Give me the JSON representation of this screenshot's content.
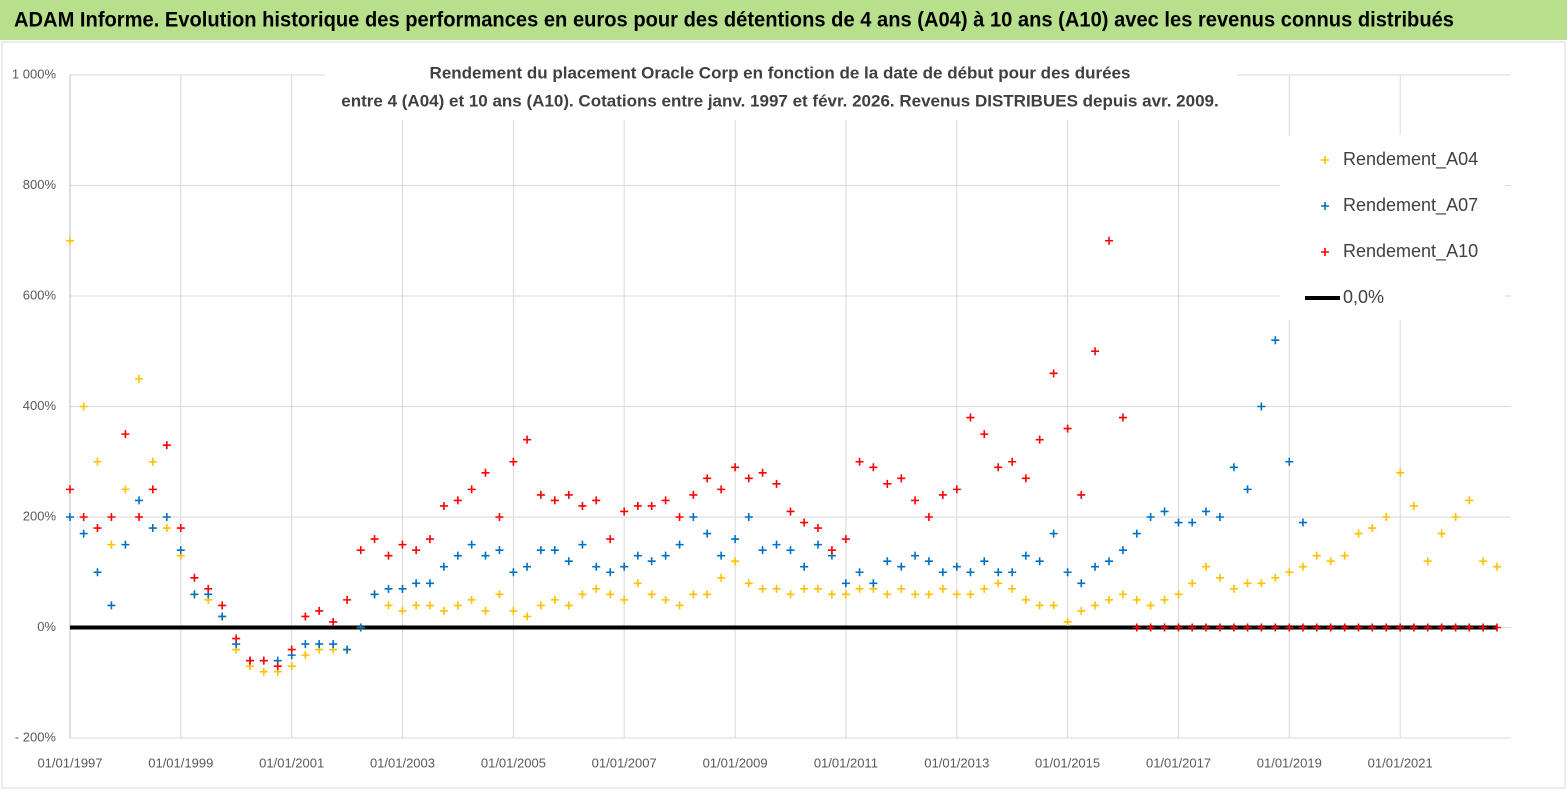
{
  "header": {
    "title": "ADAM Informe. Evolution historique des performances en euros pour des détentions de 4 ans (A04) à 10 ans (A10) avec les revenus connus distribués"
  },
  "chart_data": {
    "type": "scatter",
    "title": [
      "Rendement du placement Oracle Corp en fonction de la date de début pour des durées",
      "entre 4 (A04) et 10 ans (A10). Cotations entre janv. 1997 et févr. 2026. Revenus DISTRIBUES depuis avr. 2009."
    ],
    "x": [
      "1997-01-01",
      "1997-04-01",
      "1997-07-01",
      "1997-10-01",
      "1998-01-01",
      "1998-04-01",
      "1998-07-01",
      "1998-10-01",
      "1999-01-01",
      "1999-04-01",
      "1999-07-01",
      "1999-10-01",
      "2000-01-01",
      "2000-04-01",
      "2000-07-01",
      "2000-10-01",
      "2001-01-01",
      "2001-04-01",
      "2001-07-01",
      "2001-10-01",
      "2002-01-01",
      "2002-04-01",
      "2002-07-01",
      "2002-10-01",
      "2003-01-01",
      "2003-04-01",
      "2003-07-01",
      "2003-10-01",
      "2004-01-01",
      "2004-04-01",
      "2004-07-01",
      "2004-10-01",
      "2005-01-01",
      "2005-04-01",
      "2005-07-01",
      "2005-10-01",
      "2006-01-01",
      "2006-04-01",
      "2006-07-01",
      "2006-10-01",
      "2007-01-01",
      "2007-04-01",
      "2007-07-01",
      "2007-10-01",
      "2008-01-01",
      "2008-04-01",
      "2008-07-01",
      "2008-10-01",
      "2009-01-01",
      "2009-04-01",
      "2009-07-01",
      "2009-10-01",
      "2010-01-01",
      "2010-04-01",
      "2010-07-01",
      "2010-10-01",
      "2011-01-01",
      "2011-04-01",
      "2011-07-01",
      "2011-10-01",
      "2012-01-01",
      "2012-04-01",
      "2012-07-01",
      "2012-10-01",
      "2013-01-01",
      "2013-04-01",
      "2013-07-01",
      "2013-10-01",
      "2014-01-01",
      "2014-04-01",
      "2014-07-01",
      "2014-10-01",
      "2015-01-01",
      "2015-04-01",
      "2015-07-01",
      "2015-10-01",
      "2016-01-01",
      "2016-04-01",
      "2016-07-01",
      "2016-10-01",
      "2017-01-01",
      "2017-04-01",
      "2017-07-01",
      "2017-10-01",
      "2018-01-01",
      "2018-04-01",
      "2018-07-01",
      "2018-10-01",
      "2019-01-01",
      "2019-04-01",
      "2019-07-01",
      "2019-10-01",
      "2020-01-01",
      "2020-04-01",
      "2020-07-01",
      "2020-10-01",
      "2021-01-01",
      "2021-04-01",
      "2021-07-01",
      "2021-10-01",
      "2022-01-01",
      "2022-04-01",
      "2022-07-01",
      "2022-10-01"
    ],
    "series": [
      {
        "name": "Rendement_A04",
        "color": "#ffc000",
        "mode": "markers",
        "values": [
          700,
          400,
          300,
          150,
          250,
          450,
          300,
          180,
          130,
          60,
          50,
          20,
          -40,
          -70,
          -80,
          -80,
          -70,
          -50,
          -40,
          -40,
          -40,
          0,
          60,
          40,
          30,
          40,
          40,
          30,
          40,
          50,
          30,
          60,
          30,
          20,
          40,
          50,
          40,
          60,
          70,
          60,
          50,
          80,
          60,
          50,
          40,
          60,
          60,
          90,
          120,
          80,
          70,
          70,
          60,
          70,
          70,
          60,
          60,
          70,
          70,
          60,
          70,
          60,
          60,
          70,
          60,
          60,
          70,
          80,
          70,
          50,
          40,
          40,
          10,
          30,
          40,
          50,
          60,
          50,
          40,
          50,
          60,
          80,
          110,
          90,
          70,
          80,
          80,
          90,
          100,
          110,
          130,
          120,
          130,
          170,
          180,
          200,
          280,
          220,
          120,
          170,
          200,
          230,
          120,
          110
        ]
      },
      {
        "name": "Rendement_A07",
        "color": "#0070c0",
        "mode": "markers",
        "values": [
          200,
          170,
          100,
          40,
          150,
          230,
          180,
          200,
          140,
          60,
          60,
          20,
          -30,
          -60,
          -60,
          -60,
          -50,
          -30,
          -30,
          -30,
          -40,
          0,
          60,
          70,
          70,
          80,
          80,
          110,
          130,
          150,
          130,
          140,
          100,
          110,
          140,
          140,
          120,
          150,
          110,
          100,
          110,
          130,
          120,
          130,
          150,
          200,
          170,
          130,
          160,
          200,
          140,
          150,
          140,
          110,
          150,
          130,
          80,
          100,
          80,
          120,
          110,
          130,
          120,
          100,
          110,
          100,
          120,
          100,
          100,
          130,
          120,
          170,
          100,
          80,
          110,
          120,
          140,
          170,
          200,
          210,
          190,
          190,
          210,
          200,
          290,
          250,
          400,
          520,
          300,
          190,
          null,
          null,
          null,
          null,
          null,
          null,
          null,
          null,
          null,
          null,
          null,
          null,
          null,
          null
        ]
      },
      {
        "name": "Rendement_A10",
        "color": "#ff0000",
        "mode": "markers",
        "values": [
          250,
          200,
          180,
          200,
          350,
          200,
          250,
          330,
          180,
          90,
          70,
          40,
          -20,
          -60,
          -60,
          -70,
          -40,
          20,
          30,
          10,
          50,
          140,
          160,
          130,
          150,
          140,
          160,
          220,
          230,
          250,
          280,
          200,
          300,
          340,
          240,
          230,
          240,
          220,
          230,
          160,
          210,
          220,
          220,
          230,
          200,
          240,
          270,
          250,
          290,
          270,
          280,
          260,
          210,
          190,
          180,
          140,
          160,
          300,
          290,
          260,
          270,
          230,
          200,
          240,
          250,
          380,
          350,
          290,
          300,
          270,
          340,
          460,
          360,
          240,
          500,
          700,
          380,
          0,
          0,
          0,
          0,
          0,
          0,
          0,
          0,
          0,
          0,
          0,
          0,
          0,
          0,
          0,
          0,
          0,
          0,
          0,
          0,
          0,
          0,
          0,
          0,
          0,
          0,
          0
        ]
      },
      {
        "name": "0,0%",
        "color": "#000000",
        "mode": "line",
        "values": [
          0,
          0,
          0,
          0,
          0,
          0,
          0,
          0,
          0,
          0,
          0,
          0,
          0,
          0,
          0,
          0,
          0,
          0,
          0,
          0,
          0,
          0,
          0,
          0,
          0,
          0,
          0,
          0,
          0,
          0,
          0,
          0,
          0,
          0,
          0,
          0,
          0,
          0,
          0,
          0,
          0,
          0,
          0,
          0,
          0,
          0,
          0,
          0,
          0,
          0,
          0,
          0,
          0,
          0,
          0,
          0,
          0,
          0,
          0,
          0,
          0,
          0,
          0,
          0,
          0,
          0,
          0,
          0,
          0,
          0,
          0,
          0,
          0,
          0,
          0,
          0,
          0,
          0,
          0,
          0,
          0,
          0,
          0,
          0,
          0,
          0,
          0,
          0,
          0,
          0,
          0,
          0,
          0,
          0,
          0,
          0,
          0,
          0,
          0,
          0,
          0,
          0,
          0,
          0
        ]
      }
    ],
    "xlim": [
      "1997-01-01",
      "2023-01-01"
    ],
    "xticks": [
      {
        "value": "1997-01-01",
        "label": "01/01/1997"
      },
      {
        "value": "1999-01-01",
        "label": "01/01/1999"
      },
      {
        "value": "2001-01-01",
        "label": "01/01/2001"
      },
      {
        "value": "2003-01-01",
        "label": "01/01/2003"
      },
      {
        "value": "2005-01-01",
        "label": "01/01/2005"
      },
      {
        "value": "2007-01-01",
        "label": "01/01/2007"
      },
      {
        "value": "2009-01-01",
        "label": "01/01/2009"
      },
      {
        "value": "2011-01-01",
        "label": "01/01/2011"
      },
      {
        "value": "2013-01-01",
        "label": "01/01/2013"
      },
      {
        "value": "2015-01-01",
        "label": "01/01/2015"
      },
      {
        "value": "2017-01-01",
        "label": "01/01/2017"
      },
      {
        "value": "2019-01-01",
        "label": "01/01/2019"
      },
      {
        "value": "2021-01-01",
        "label": "01/01/2021"
      }
    ],
    "ylim": [
      -200,
      1000
    ],
    "yticks": [
      {
        "value": -200,
        "label": "- 200%"
      },
      {
        "value": 0,
        "label": "0%"
      },
      {
        "value": 200,
        "label": "200%"
      },
      {
        "value": 400,
        "label": "400%"
      },
      {
        "value": 600,
        "label": "600%"
      },
      {
        "value": 800,
        "label": "800%"
      },
      {
        "value": 1000,
        "label": "1 000%"
      }
    ],
    "grid": true,
    "legend": "upper right"
  }
}
